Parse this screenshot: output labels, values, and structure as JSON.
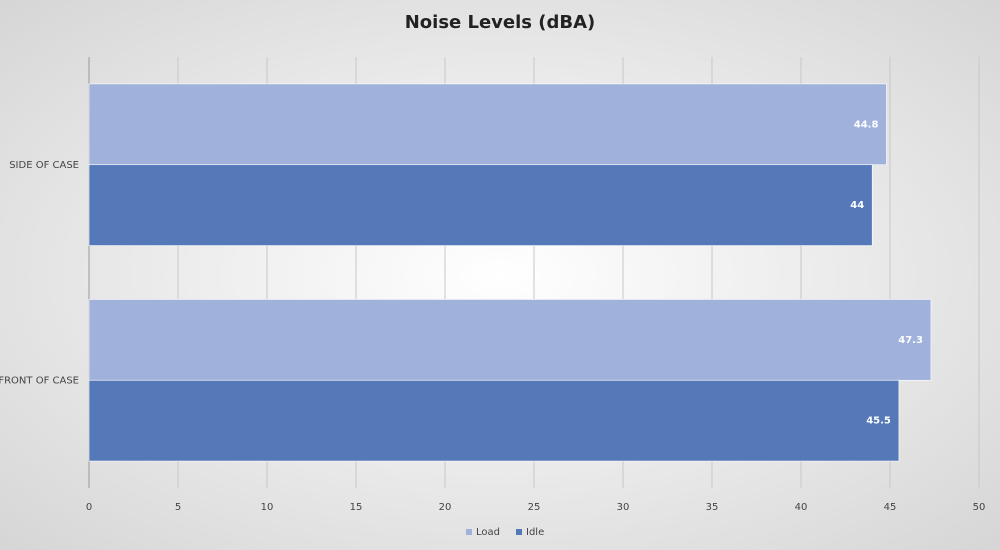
{
  "chart_data": {
    "type": "hbar",
    "title": "Noise Levels (dBA)",
    "categories": [
      "SIDE OF CASE",
      "FRONT OF CASE"
    ],
    "series": [
      {
        "name": "Load",
        "color": "#a0b1dc",
        "values": [
          44.8,
          47.3
        ]
      },
      {
        "name": "Idle",
        "color": "#5578b8",
        "values": [
          44,
          45.5
        ]
      }
    ],
    "xlim": [
      0,
      50
    ],
    "xticks": [
      0,
      5,
      10,
      15,
      20,
      25,
      30,
      35,
      40,
      45,
      50
    ],
    "grid": true,
    "legend": "bottom"
  }
}
